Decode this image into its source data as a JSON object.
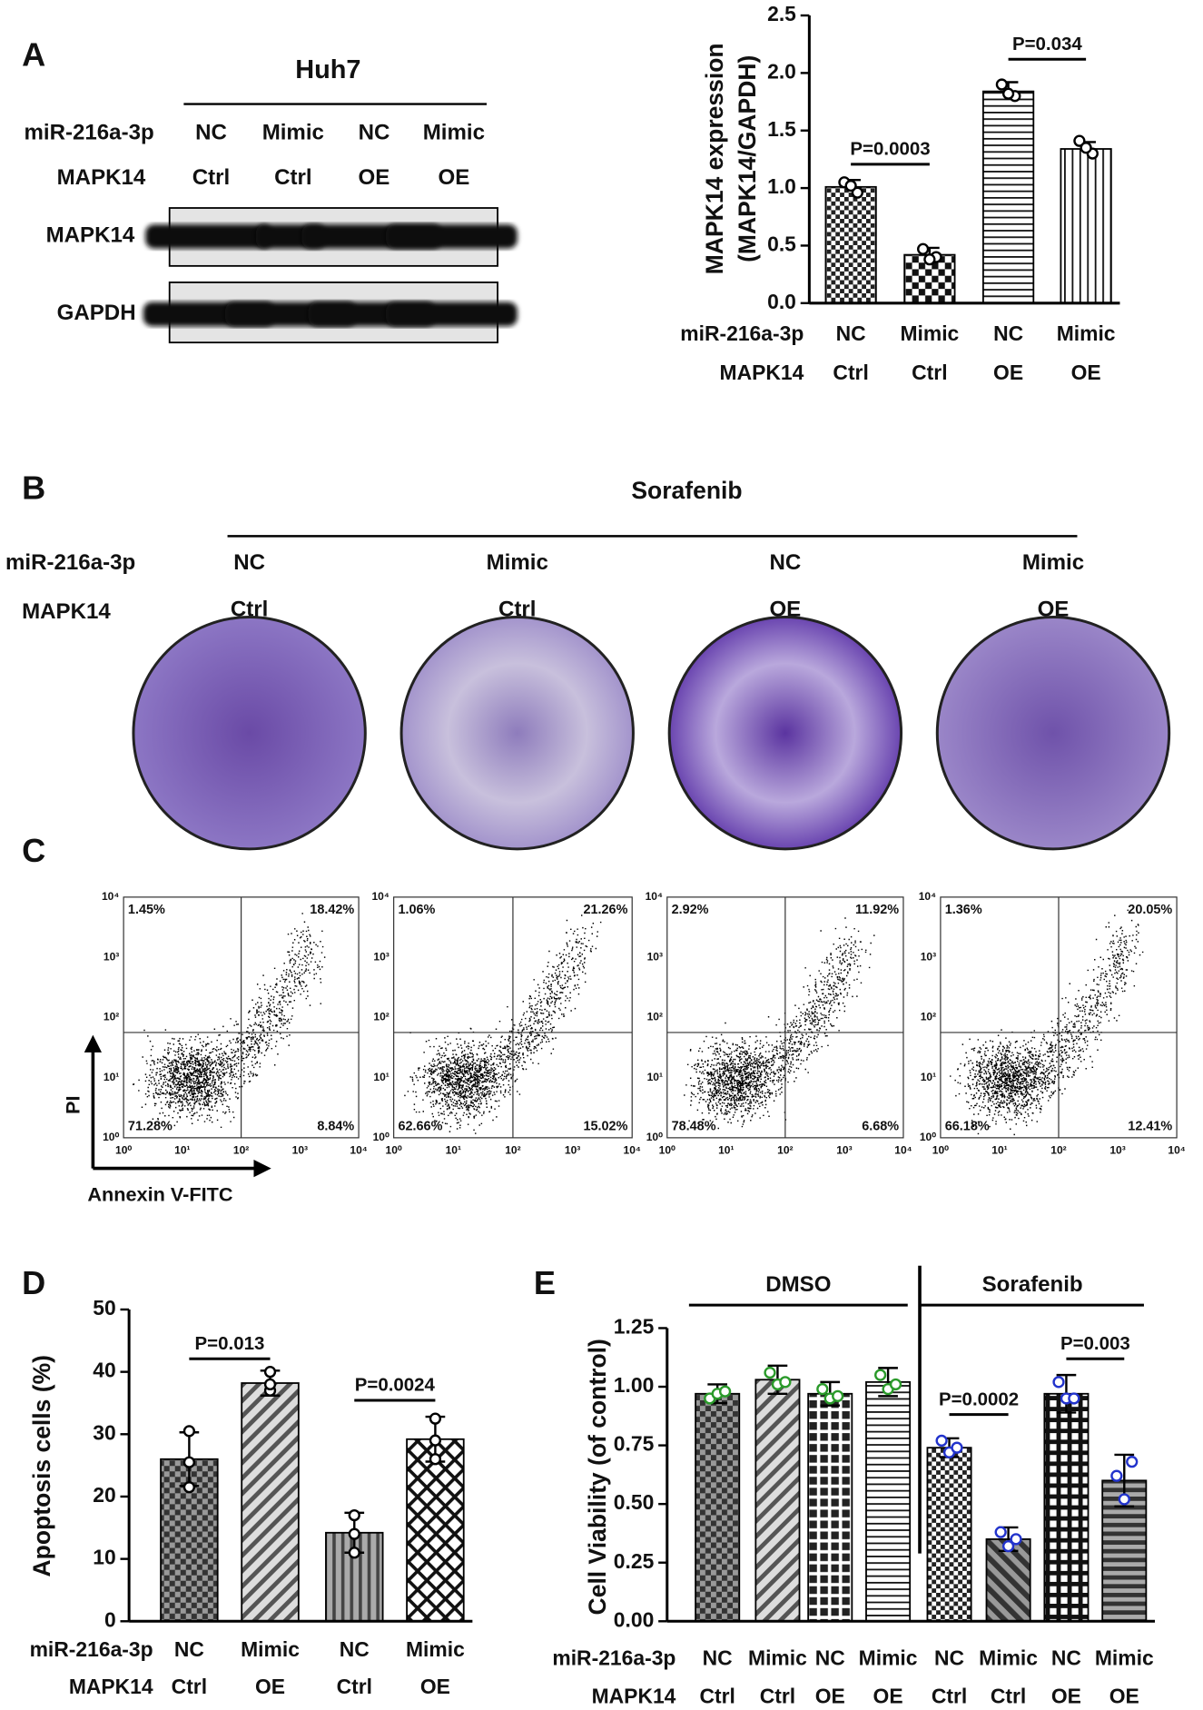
{
  "panel_labels": [
    "A",
    "B",
    "C",
    "D",
    "E"
  ],
  "blot": {
    "cell_line": "Huh7",
    "rows": [
      {
        "name": "miR-216a-3p",
        "labels": [
          "NC",
          "Mimic",
          "NC",
          "Mimic"
        ]
      },
      {
        "name": "MAPK14",
        "labels": [
          "Ctrl",
          "Ctrl",
          "OE",
          "OE"
        ]
      }
    ],
    "bands": [
      "MAPK14",
      "GAPDH"
    ]
  },
  "colony": {
    "title": "Sorafenib",
    "rows": [
      {
        "name": "miR-216a-3p",
        "labels": [
          "NC",
          "Mimic",
          "NC",
          "Mimic"
        ]
      },
      {
        "name": "MAPK14",
        "labels": [
          "Ctrl",
          "Ctrl",
          "OE",
          "OE"
        ]
      }
    ]
  },
  "flow": {
    "y_label": "PI",
    "x_label": "Annexin V-FITC",
    "ticks": [
      "10⁰",
      "10¹",
      "10²",
      "10³",
      "10⁴"
    ],
    "plots": [
      {
        "quadrants": [
          "1.45%",
          "18.42%",
          "71.28%",
          "8.84%"
        ]
      },
      {
        "quadrants": [
          "1.06%",
          "21.26%",
          "62.66%",
          "15.02%"
        ]
      },
      {
        "quadrants": [
          "2.92%",
          "11.92%",
          "78.48%",
          "6.68%"
        ]
      },
      {
        "quadrants": [
          "1.36%",
          "20.05%",
          "66.18%",
          "12.41%"
        ]
      }
    ]
  },
  "chart_data": [
    {
      "type": "bar",
      "ylabel": [
        "MAPK14 expression",
        "(MAPK14/GAPDH)"
      ],
      "ylim": [
        0,
        2.5
      ],
      "yticks": [
        {
          "value": 0,
          "label": "0.0"
        },
        0.5,
        {
          "value": 1,
          "label": "1.0"
        },
        1.5,
        {
          "value": 2,
          "label": "2.0"
        },
        2.5
      ],
      "group_rows": [
        {
          "name": "miR-216a-3p",
          "labels": [
            "NC",
            "Mimic",
            "NC",
            "Mimic"
          ]
        },
        {
          "name": "MAPK14",
          "labels": [
            "Ctrl",
            "Ctrl",
            "OE",
            "OE"
          ]
        }
      ],
      "values": [
        1.01,
        0.42,
        1.84,
        1.34
      ],
      "errors": [
        0.06,
        0.06,
        0.08,
        0.06
      ],
      "error_bars": "up",
      "points": [
        [
          1.05,
          0.96,
          1.02
        ],
        [
          0.47,
          0.4,
          0.38
        ],
        [
          1.9,
          1.8,
          1.82
        ],
        [
          1.41,
          1.3,
          1.35
        ]
      ],
      "point_colors": [
        "#000",
        "#000",
        "#000",
        "#000"
      ],
      "patterns": [
        "checker",
        "checkerL",
        "hlines",
        "vlines"
      ],
      "annotations": [
        {
          "text": "P=0.0003",
          "between": [
            0,
            1
          ]
        },
        {
          "text": "P=0.034",
          "between": [
            2,
            3
          ]
        }
      ]
    },
    {
      "type": "bar",
      "ylabel": [
        "Apoptosis cells (%)"
      ],
      "ylim": [
        0,
        50
      ],
      "yticks": [
        0,
        10,
        20,
        30,
        40,
        50
      ],
      "group_rows": [
        {
          "name": "miR-216a-3p",
          "labels": [
            "NC",
            "Mimic",
            "NC",
            "Mimic"
          ]
        },
        {
          "name": "MAPK14",
          "labels": [
            "Ctrl",
            "OE",
            "Ctrl",
            "OE"
          ]
        }
      ],
      "values": [
        26,
        38.2,
        14.2,
        29.2
      ],
      "errors": [
        4.3,
        2.0,
        3.2,
        3.6
      ],
      "error_bars": "both",
      "points": [
        [
          30.5,
          25.5,
          21.5
        ],
        [
          40,
          37,
          38
        ],
        [
          17,
          14,
          11
        ],
        [
          32.5,
          29,
          26
        ]
      ],
      "point_colors": [
        "#000",
        "#000",
        "#000",
        "#000"
      ],
      "patterns": [
        "checkerG",
        "diag",
        "vstripes",
        "cross"
      ],
      "annotations": [
        {
          "text": "P=0.013",
          "between": [
            0,
            1
          ]
        },
        {
          "text": "P=0.0024",
          "between": [
            2,
            3
          ]
        }
      ]
    },
    {
      "type": "bar",
      "ylabel": [
        "Cell Viability (of control)"
      ],
      "ylim": [
        0,
        1.25
      ],
      "yticks": [
        {
          "value": 0,
          "label": "0.00"
        },
        0.25,
        {
          "value": 0.5,
          "label": "0.50"
        },
        0.75,
        {
          "value": 1,
          "label": "1.00"
        },
        1.25
      ],
      "group_rows": [
        {
          "name": "miR-216a-3p",
          "labels": [
            "NC",
            "Mimic",
            "NC",
            "Mimic",
            "NC",
            "Mimic",
            "NC",
            "Mimic"
          ]
        },
        {
          "name": "MAPK14",
          "labels": [
            "Ctrl",
            "Ctrl",
            "OE",
            "OE",
            "Ctrl",
            "Ctrl",
            "OE",
            "OE"
          ]
        }
      ],
      "groups": [
        {
          "name": "DMSO",
          "between": [
            0,
            3
          ]
        },
        {
          "name": "Sorafenib",
          "between": [
            4,
            7
          ]
        }
      ],
      "values": [
        0.97,
        1.03,
        0.97,
        1.02,
        0.74,
        0.35,
        0.97,
        0.6
      ],
      "errors": [
        0.04,
        0.06,
        0.05,
        0.06,
        0.04,
        0.05,
        0.08,
        0.11
      ],
      "error_bars": "both",
      "points": [
        [
          0.95,
          0.97,
          0.98
        ],
        [
          1.06,
          1.01,
          1.02
        ],
        [
          0.99,
          0.95,
          0.96
        ],
        [
          1.05,
          0.99,
          1.01
        ],
        [
          0.77,
          0.72,
          0.74
        ],
        [
          0.38,
          0.32,
          0.35
        ],
        [
          1.02,
          0.95,
          0.95
        ],
        [
          0.62,
          0.52,
          0.68
        ]
      ],
      "point_colors": [
        "#2a9a2a",
        "#2a9a2a",
        "#2a9a2a",
        "#2a9a2a",
        "#2233cc",
        "#2233cc",
        "#2233cc",
        "#2233cc"
      ],
      "patterns": [
        "checkerG",
        "diag",
        "grid",
        "hlines",
        "checker",
        "diagDark",
        "gridW",
        "hstripes"
      ],
      "annotations": [
        {
          "text": "P=0.0002",
          "between": [
            4,
            5
          ]
        },
        {
          "text": "P=0.003",
          "between": [
            6,
            7
          ]
        }
      ]
    }
  ]
}
